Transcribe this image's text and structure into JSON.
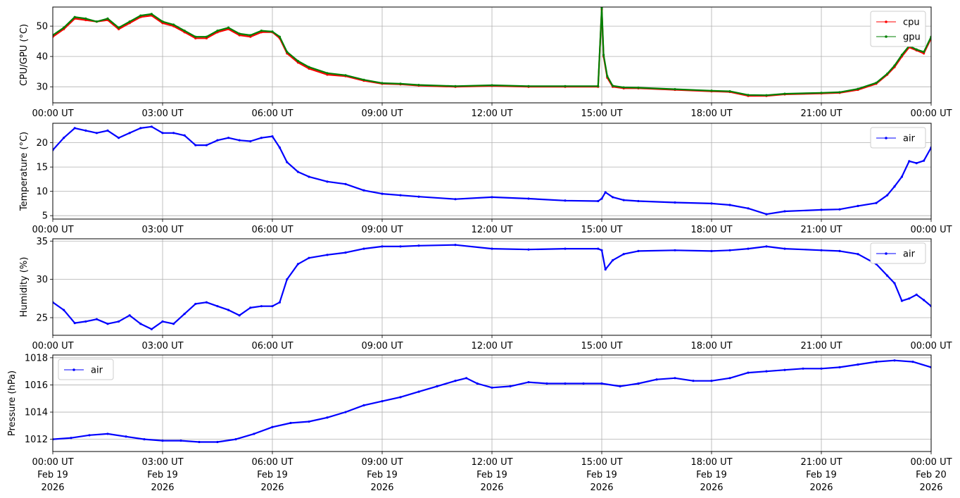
{
  "chart_data": [
    {
      "type": "line",
      "ylabel": "CPU/GPU (°C)",
      "ylim": [
        24.7,
        56.3
      ],
      "yticks": [
        30,
        40,
        50
      ],
      "xlim": [
        0,
        24
      ],
      "xtick_labels": [
        "00:00 UT",
        "03:00 UT",
        "06:00 UT",
        "09:00 UT",
        "12:00 UT",
        "15:00 UT",
        "18:00 UT",
        "21:00 UT",
        "00:00 UT"
      ],
      "grid": true,
      "legend": "top-right",
      "series": [
        {
          "name": "cpu",
          "color": "#ff0000",
          "x": [
            0,
            0.3,
            0.6,
            0.9,
            1.2,
            1.5,
            1.8,
            2.1,
            2.4,
            2.7,
            3.0,
            3.3,
            3.6,
            3.9,
            4.2,
            4.5,
            4.8,
            5.1,
            5.4,
            5.7,
            6.0,
            6.2,
            6.4,
            6.7,
            7.0,
            7.5,
            8.0,
            8.5,
            9.0,
            9.5,
            10.0,
            11.0,
            12.0,
            13.0,
            14.0,
            14.9,
            15.0,
            15.05,
            15.15,
            15.3,
            15.6,
            16.0,
            17.0,
            18.0,
            18.5,
            19.0,
            19.5,
            20.0,
            21.0,
            21.5,
            22.0,
            22.5,
            22.8,
            23.0,
            23.2,
            23.4,
            23.6,
            23.8,
            24.0
          ],
          "y": [
            46.5,
            49,
            52.5,
            52,
            51.5,
            52,
            49,
            51,
            53,
            53.5,
            51,
            50,
            48,
            46,
            46,
            48,
            49,
            47,
            46.5,
            48,
            48,
            46,
            41,
            38,
            36,
            34,
            33.5,
            32,
            31,
            30.8,
            30.4,
            30,
            30.3,
            30,
            30,
            30,
            55.5,
            40,
            33,
            30,
            29.5,
            29.5,
            29,
            28.5,
            28.3,
            27,
            27,
            27.5,
            27.8,
            28,
            29,
            31,
            34,
            36.5,
            40,
            43,
            42,
            41,
            46
          ]
        },
        {
          "name": "gpu",
          "color": "#008000",
          "x": [
            0,
            0.3,
            0.6,
            0.9,
            1.2,
            1.5,
            1.8,
            2.1,
            2.4,
            2.7,
            3.0,
            3.3,
            3.6,
            3.9,
            4.2,
            4.5,
            4.8,
            5.1,
            5.4,
            5.7,
            6.0,
            6.2,
            6.4,
            6.7,
            7.0,
            7.5,
            8.0,
            8.5,
            9.0,
            9.5,
            10.0,
            11.0,
            12.0,
            13.0,
            14.0,
            14.9,
            15.0,
            15.05,
            15.15,
            15.3,
            15.6,
            16.0,
            17.0,
            18.0,
            18.5,
            19.0,
            19.5,
            20.0,
            21.0,
            21.5,
            22.0,
            22.5,
            22.8,
            23.0,
            23.2,
            23.4,
            23.6,
            23.8,
            24.0
          ],
          "y": [
            47,
            49.5,
            53,
            52.5,
            51.5,
            52.5,
            49.5,
            51.5,
            53.5,
            54,
            51.5,
            50.5,
            48.5,
            46.5,
            46.5,
            48.5,
            49.5,
            47.5,
            47,
            48.5,
            48.2,
            46.5,
            41.5,
            38.5,
            36.5,
            34.5,
            33.8,
            32.3,
            31.2,
            31,
            30.6,
            30.2,
            30.5,
            30.2,
            30.2,
            30.2,
            56,
            40.5,
            33.5,
            30.3,
            29.8,
            29.7,
            29.2,
            28.7,
            28.5,
            27.3,
            27.2,
            27.7,
            28,
            28.2,
            29.3,
            31.3,
            34.3,
            37,
            40.5,
            43.5,
            42.3,
            41.5,
            46.5
          ]
        }
      ]
    },
    {
      "type": "line",
      "ylabel": "Temperature (°C)",
      "ylim": [
        4.3,
        24
      ],
      "yticks": [
        5,
        10,
        15,
        20
      ],
      "xlim": [
        0,
        24
      ],
      "xtick_labels": [
        "00:00 UT",
        "03:00 UT",
        "06:00 UT",
        "09:00 UT",
        "12:00 UT",
        "15:00 UT",
        "18:00 UT",
        "21:00 UT",
        "00:00 UT"
      ],
      "grid": true,
      "legend": "top-right",
      "series": [
        {
          "name": "air",
          "color": "#0000ff",
          "x": [
            0,
            0.3,
            0.6,
            0.9,
            1.2,
            1.5,
            1.8,
            2.1,
            2.4,
            2.7,
            3.0,
            3.3,
            3.6,
            3.9,
            4.2,
            4.5,
            4.8,
            5.1,
            5.4,
            5.7,
            6.0,
            6.2,
            6.4,
            6.7,
            7.0,
            7.5,
            8.0,
            8.5,
            9.0,
            9.5,
            10.0,
            11.0,
            12.0,
            13.0,
            14.0,
            14.9,
            15.0,
            15.1,
            15.3,
            15.6,
            16.0,
            17.0,
            18.0,
            18.5,
            19.0,
            19.5,
            20.0,
            21.0,
            21.5,
            22.0,
            22.5,
            22.8,
            23.0,
            23.2,
            23.4,
            23.6,
            23.8,
            24.0
          ],
          "y": [
            18.5,
            21,
            23,
            22.5,
            22,
            22.5,
            21,
            22,
            23,
            23.3,
            22,
            22,
            21.5,
            19.5,
            19.5,
            20.5,
            21,
            20.5,
            20.3,
            21,
            21.3,
            19,
            16,
            14,
            13,
            12,
            11.5,
            10.2,
            9.5,
            9.2,
            8.9,
            8.4,
            8.8,
            8.5,
            8.1,
            8,
            8.5,
            9.8,
            8.8,
            8.2,
            8,
            7.7,
            7.5,
            7.2,
            6.5,
            5.3,
            5.9,
            6.2,
            6.3,
            7,
            7.6,
            9.2,
            11,
            13,
            16.2,
            15.8,
            16.3,
            19
          ]
        }
      ]
    },
    {
      "type": "line",
      "ylabel": "Humidity (%)",
      "ylim": [
        22.7,
        35.3
      ],
      "yticks": [
        25,
        30,
        35
      ],
      "xlim": [
        0,
        24
      ],
      "xtick_labels": [
        "00:00 UT",
        "03:00 UT",
        "06:00 UT",
        "09:00 UT",
        "12:00 UT",
        "15:00 UT",
        "18:00 UT",
        "21:00 UT",
        "00:00 UT"
      ],
      "grid": true,
      "legend": "top-right",
      "series": [
        {
          "name": "air",
          "color": "#0000ff",
          "x": [
            0,
            0.3,
            0.6,
            0.9,
            1.2,
            1.5,
            1.8,
            2.1,
            2.4,
            2.7,
            3.0,
            3.3,
            3.6,
            3.9,
            4.2,
            4.5,
            4.8,
            5.1,
            5.4,
            5.7,
            6.0,
            6.2,
            6.4,
            6.7,
            7.0,
            7.5,
            8.0,
            8.5,
            9.0,
            9.5,
            10.0,
            11.0,
            12.0,
            13.0,
            14.0,
            14.9,
            15.0,
            15.1,
            15.3,
            15.6,
            16.0,
            17.0,
            18.0,
            18.5,
            19.0,
            19.5,
            20.0,
            21.0,
            21.5,
            22.0,
            22.5,
            22.8,
            23.0,
            23.2,
            23.4,
            23.6,
            23.8,
            24.0
          ],
          "y": [
            27,
            26,
            24.3,
            24.5,
            24.8,
            24.2,
            24.5,
            25.3,
            24.2,
            23.5,
            24.5,
            24.2,
            25.5,
            26.8,
            27,
            26.5,
            26,
            25.3,
            26.3,
            26.5,
            26.5,
            27,
            30,
            32,
            32.8,
            33.2,
            33.5,
            34,
            34.3,
            34.3,
            34.4,
            34.5,
            34,
            33.9,
            34,
            34,
            33.8,
            31.3,
            32.5,
            33.3,
            33.7,
            33.8,
            33.7,
            33.8,
            34,
            34.3,
            34,
            33.8,
            33.7,
            33.3,
            32,
            30.5,
            29.5,
            27.2,
            27.5,
            28,
            27.3,
            26.5
          ]
        }
      ]
    },
    {
      "type": "line",
      "ylabel": "Pressure (hPa)",
      "ylim": [
        1011.1,
        1018.2
      ],
      "yticks": [
        1012,
        1014,
        1016,
        1018
      ],
      "xlim": [
        0,
        24
      ],
      "xtick_labels": [
        "00:00 UT",
        "03:00 UT",
        "06:00 UT",
        "09:00 UT",
        "12:00 UT",
        "15:00 UT",
        "18:00 UT",
        "21:00 UT",
        "00:00 UT"
      ],
      "xtick_dates": [
        "Feb 19",
        "Feb 19",
        "Feb 19",
        "Feb 19",
        "Feb 19",
        "Feb 19",
        "Feb 19",
        "Feb 19",
        "Feb 20"
      ],
      "xtick_years": [
        "2026",
        "2026",
        "2026",
        "2026",
        "2026",
        "2026",
        "2026",
        "2026",
        "2026"
      ],
      "grid": true,
      "legend": "top-left",
      "series": [
        {
          "name": "air",
          "color": "#0000ff",
          "x": [
            0,
            0.5,
            1.0,
            1.5,
            2.0,
            2.5,
            3.0,
            3.5,
            4.0,
            4.5,
            5.0,
            5.5,
            6.0,
            6.5,
            7.0,
            7.5,
            8.0,
            8.5,
            9.0,
            9.5,
            10.0,
            10.5,
            11.0,
            11.3,
            11.6,
            12.0,
            12.5,
            13.0,
            13.5,
            14.0,
            14.5,
            15.0,
            15.5,
            16.0,
            16.5,
            17.0,
            17.5,
            18.0,
            18.5,
            19.0,
            19.5,
            20.0,
            20.5,
            21.0,
            21.5,
            22.0,
            22.5,
            23.0,
            23.5,
            24.0
          ],
          "y": [
            1012,
            1012.1,
            1012.3,
            1012.4,
            1012.2,
            1012,
            1011.9,
            1011.9,
            1011.8,
            1011.8,
            1012,
            1012.4,
            1012.9,
            1013.2,
            1013.3,
            1013.6,
            1014,
            1014.5,
            1014.8,
            1015.1,
            1015.5,
            1015.9,
            1016.3,
            1016.5,
            1016.1,
            1015.8,
            1015.9,
            1016.2,
            1016.1,
            1016.1,
            1016.1,
            1016.1,
            1015.9,
            1016.1,
            1016.4,
            1016.5,
            1016.3,
            1016.3,
            1016.5,
            1016.9,
            1017,
            1017.1,
            1017.2,
            1017.2,
            1017.3,
            1017.5,
            1017.7,
            1017.8,
            1017.7,
            1017.3
          ]
        }
      ]
    }
  ]
}
